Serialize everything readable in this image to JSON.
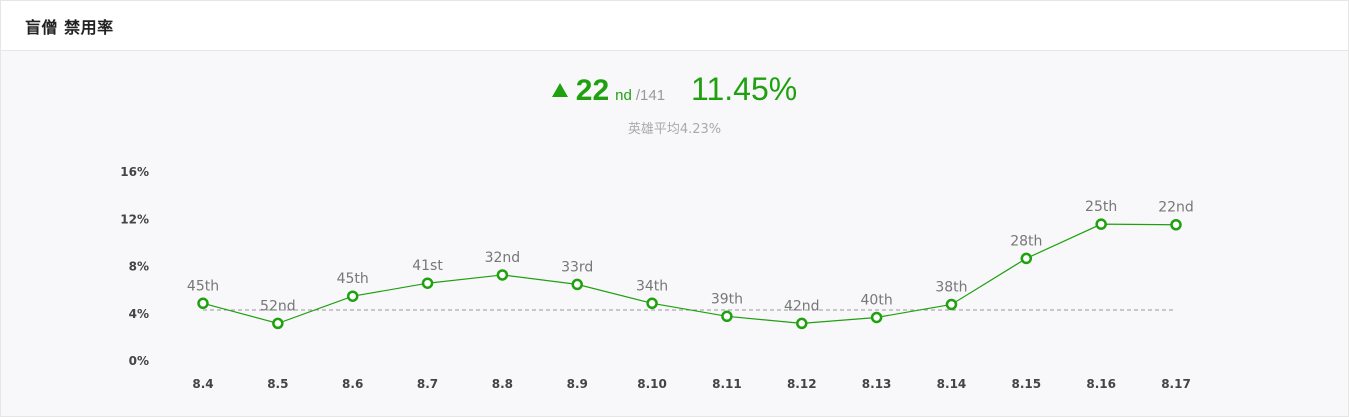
{
  "header": {
    "title": "盲僧 禁用率"
  },
  "summary": {
    "trend_icon": "triangle-up-icon",
    "rank_number": "22",
    "rank_suffix": "nd",
    "rank_total": "/141",
    "ban_rate": "11.45%",
    "average_text": "英雄平均4.23%"
  },
  "colors": {
    "accent": "#1fa10f",
    "average_line": "#999999"
  },
  "chart_data": {
    "type": "line",
    "title": "",
    "xlabel": "",
    "ylabel": "",
    "x": [
      "8.4",
      "8.5",
      "8.6",
      "8.7",
      "8.8",
      "8.9",
      "8.10",
      "8.11",
      "8.12",
      "8.13",
      "8.14",
      "8.15",
      "8.16",
      "8.17"
    ],
    "series": [
      {
        "values": [
          4.8,
          3.1,
          5.4,
          6.5,
          7.2,
          6.4,
          4.8,
          3.7,
          3.1,
          3.6,
          4.7,
          8.6,
          11.5,
          11.45
        ],
        "labels": [
          "45th",
          "52nd",
          "45th",
          "41st",
          "32nd",
          "33rd",
          "34th",
          "39th",
          "42nd",
          "40th",
          "38th",
          "28th",
          "25th",
          "22nd"
        ]
      }
    ],
    "average": 4.23,
    "yticks": [
      "0%",
      "4%",
      "8%",
      "12%",
      "16%"
    ],
    "ylim": [
      0,
      16
    ],
    "grid": false,
    "legend": "none"
  }
}
